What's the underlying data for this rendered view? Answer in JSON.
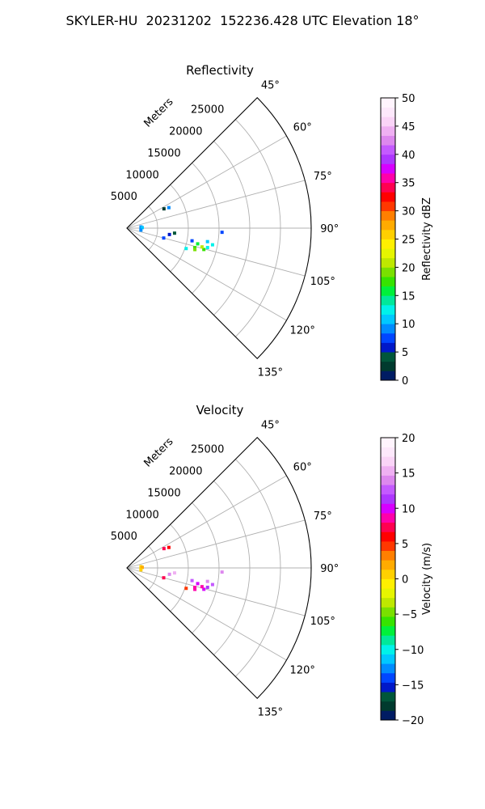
{
  "suptitle": "SKYLER-HU  20231202  152236.428 UTC Elevation 18°",
  "colors": {
    "grid": "#b0b0b0",
    "frame": "#000000",
    "background": "#ffffff"
  },
  "chart_data": [
    {
      "type": "polar-sector",
      "title": "Reflectivity",
      "radial_label": "Meters",
      "radial_ticks": [
        5000,
        10000,
        15000,
        20000,
        25000
      ],
      "radial_tick_labels": [
        "5000",
        "10000",
        "15000",
        "20000",
        "25000"
      ],
      "rlim": [
        0,
        30000
      ],
      "theta_range_deg": [
        45,
        135
      ],
      "theta_ticks": [
        45,
        60,
        75,
        90,
        105,
        120,
        135
      ],
      "theta_tick_labels": [
        "45°",
        "60°",
        "75°",
        "90°",
        "105°",
        "120°",
        "135°"
      ],
      "grid": true,
      "colorbar": {
        "label": "Reflectivity dBZ",
        "range": [
          0,
          50
        ],
        "ticks": [
          0,
          5,
          10,
          15,
          20,
          25,
          30,
          35,
          40,
          45,
          50
        ],
        "tick_labels": [
          "0",
          "5",
          "10",
          "15",
          "20",
          "25",
          "30",
          "35",
          "40",
          "45",
          "50"
        ],
        "colors": [
          "#001c63",
          "#003a2e",
          "#00563a",
          "#0018c8",
          "#0046ff",
          "#008cff",
          "#00c8ff",
          "#00f2ea",
          "#00e89a",
          "#00f03a",
          "#36e300",
          "#7ae000",
          "#bee800",
          "#e6f500",
          "#fff000",
          "#ffd000",
          "#ffab00",
          "#ff7f00",
          "#ff3800",
          "#ff0000",
          "#ff0050",
          "#ff00aa",
          "#d700ff",
          "#ae36ff",
          "#c45aff",
          "#dd88ee",
          "#efb0f2",
          "#fad4f7",
          "#fde8fb",
          "#fff4fd"
        ]
      },
      "echoes": [
        {
          "az": 62.5,
          "r": 6800,
          "value": 3
        },
        {
          "az": 64.0,
          "r": 7600,
          "value": 9
        },
        {
          "az": 85.0,
          "r": 2300,
          "value": 9
        },
        {
          "az": 88.0,
          "r": 2500,
          "value": 10
        },
        {
          "az": 98.0,
          "r": 2300,
          "value": 9
        },
        {
          "az": 96.0,
          "r": 7800,
          "value": 4
        },
        {
          "az": 98.5,
          "r": 7000,
          "value": 6
        },
        {
          "az": 92.5,
          "r": 15500,
          "value": 8
        },
        {
          "az": 105.0,
          "r": 6200,
          "value": 8
        },
        {
          "az": 101.0,
          "r": 10800,
          "value": 7
        },
        {
          "az": 109.0,
          "r": 10200,
          "value": 13
        },
        {
          "az": 106.0,
          "r": 11500,
          "value": 17
        },
        {
          "az": 107.5,
          "r": 11600,
          "value": 19
        },
        {
          "az": 105.5,
          "r": 13000,
          "value": 18
        },
        {
          "az": 103.5,
          "r": 13500,
          "value": 13
        },
        {
          "az": 104.0,
          "r": 12600,
          "value": 21
        },
        {
          "az": 101.0,
          "r": 14200,
          "value": 12
        },
        {
          "az": 102.5,
          "r": 11800,
          "value": 15
        },
        {
          "az": 99.5,
          "r": 13300,
          "value": 11
        }
      ]
    },
    {
      "type": "polar-sector",
      "title": "Velocity",
      "radial_label": "Meters",
      "radial_ticks": [
        5000,
        10000,
        15000,
        20000,
        25000
      ],
      "radial_tick_labels": [
        "5000",
        "10000",
        "15000",
        "20000",
        "25000"
      ],
      "rlim": [
        0,
        30000
      ],
      "theta_range_deg": [
        45,
        135
      ],
      "theta_ticks": [
        45,
        60,
        75,
        90,
        105,
        120,
        135
      ],
      "theta_tick_labels": [
        "45°",
        "60°",
        "75°",
        "90°",
        "105°",
        "120°",
        "135°"
      ],
      "grid": true,
      "colorbar": {
        "label": "Velocity (m/s)",
        "range": [
          -20,
          20
        ],
        "ticks": [
          -20,
          -15,
          -10,
          -5,
          0,
          5,
          10,
          15,
          20
        ],
        "tick_labels": [
          "−20",
          "−15",
          "−10",
          "−5",
          "0",
          "5",
          "10",
          "15",
          "20"
        ],
        "colors": [
          "#001c63",
          "#003a2e",
          "#00563a",
          "#0018c8",
          "#0046ff",
          "#008cff",
          "#00c8ff",
          "#00f2ea",
          "#00e89a",
          "#00f03a",
          "#36e300",
          "#7ae000",
          "#bee800",
          "#e6f500",
          "#fff000",
          "#ffd000",
          "#ffab00",
          "#ff7f00",
          "#ff3800",
          "#ff0000",
          "#ff0050",
          "#ff00aa",
          "#d700ff",
          "#ae36ff",
          "#c45aff",
          "#dd88ee",
          "#efb0f2",
          "#fad4f7",
          "#fde8fb",
          "#fff4fd"
        ]
      },
      "echoes": [
        {
          "az": 62.5,
          "r": 6800,
          "value": 7
        },
        {
          "az": 64.0,
          "r": 7600,
          "value": 6
        },
        {
          "az": 85.0,
          "r": 2300,
          "value": 1
        },
        {
          "az": 88.0,
          "r": 2500,
          "value": 2
        },
        {
          "az": 98.0,
          "r": 2300,
          "value": 1
        },
        {
          "az": 96.0,
          "r": 7800,
          "value": 15
        },
        {
          "az": 98.5,
          "r": 7000,
          "value": 14
        },
        {
          "az": 92.5,
          "r": 15500,
          "value": 14
        },
        {
          "az": 105.0,
          "r": 6200,
          "value": 7
        },
        {
          "az": 101.0,
          "r": 10800,
          "value": 13
        },
        {
          "az": 109.0,
          "r": 10200,
          "value": 5
        },
        {
          "az": 106.0,
          "r": 11500,
          "value": 9
        },
        {
          "az": 107.5,
          "r": 11600,
          "value": 8
        },
        {
          "az": 105.5,
          "r": 13000,
          "value": 10
        },
        {
          "az": 103.5,
          "r": 13500,
          "value": 11
        },
        {
          "az": 104.0,
          "r": 12600,
          "value": 9
        },
        {
          "az": 101.0,
          "r": 14200,
          "value": 13
        },
        {
          "az": 102.5,
          "r": 11800,
          "value": 10
        },
        {
          "az": 99.5,
          "r": 13300,
          "value": 14
        }
      ]
    }
  ]
}
